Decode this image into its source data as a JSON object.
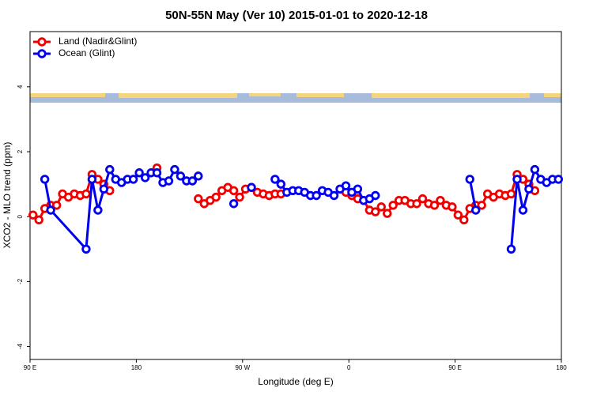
{
  "chart_data": {
    "type": "line",
    "title": "50N-55N May (Ver 10)   2015-01-01 to 2020-12-18",
    "x_label": "Longitude (deg E)",
    "y_label": "XCO2 - MLO trend (ppm)",
    "xlim": [
      90,
      540
    ],
    "xticks": [
      {
        "value": 90,
        "label": "90 E"
      },
      180,
      {
        "value": 270,
        "label": "90 W"
      },
      {
        "value": 360,
        "label": "0"
      },
      {
        "value": 450,
        "label": "90 E"
      },
      {
        "value": 540,
        "label": "180"
      }
    ],
    "ylim": [
      -4.4,
      5.7
    ],
    "yticks": [
      -4,
      -2,
      0,
      2,
      4
    ],
    "legend": "top-left",
    "series": [
      {
        "name": "Land (Nadir&Glint)",
        "color": "#ee0000",
        "x": [
          92.5,
          97.5,
          102.5,
          107.5,
          112.5,
          117.5,
          122.5,
          127.5,
          132.5,
          137.5,
          142.5,
          147.5,
          152.5,
          157.5,
          null,
          197.5,
          null,
          232.5,
          237.5,
          242.5,
          247.5,
          252.5,
          257.5,
          262.5,
          267.5,
          272.5,
          277.5,
          282.5,
          287.5,
          292.5,
          297.5,
          302.5,
          null,
          357.5,
          362.5,
          367.5,
          372.5,
          377.5,
          382.5,
          387.5,
          392.5,
          397.5,
          402.5,
          407.5,
          412.5,
          417.5,
          422.5,
          427.5,
          432.5,
          437.5,
          442.5,
          447.5,
          452.5,
          457.5,
          462.5,
          467.5,
          472.5,
          477.5,
          482.5,
          487.5,
          492.5,
          497.5,
          502.5,
          507.5,
          512.5,
          517.5
        ],
        "values": [
          0.05,
          -0.1,
          0.25,
          0.35,
          0.35,
          0.7,
          0.6,
          0.7,
          0.65,
          0.7,
          1.3,
          1.15,
          1.0,
          0.8,
          null,
          1.5,
          null,
          0.55,
          0.4,
          0.5,
          0.6,
          0.8,
          0.9,
          0.8,
          0.6,
          0.85,
          0.9,
          0.75,
          0.7,
          0.65,
          0.7,
          0.7,
          null,
          0.75,
          0.65,
          0.55,
          0.5,
          0.2,
          0.15,
          0.3,
          0.1,
          0.35,
          0.5,
          0.5,
          0.4,
          0.4,
          0.55,
          0.4,
          0.35,
          0.5,
          0.35,
          0.3,
          0.05,
          -0.1,
          0.25,
          0.35,
          0.35,
          0.7,
          0.6,
          0.7,
          0.65,
          0.7,
          1.3,
          1.15,
          1.0,
          0.8
        ]
      },
      {
        "name": "Ocean (Glint)",
        "color": "#0000ee",
        "x": [
          102.5,
          107.5,
          137.5,
          142.5,
          147.5,
          152.5,
          157.5,
          162.5,
          167.5,
          172.5,
          177.5,
          182.5,
          187.5,
          192.5,
          197.5,
          202.5,
          207.5,
          212.5,
          217.5,
          222.5,
          227.5,
          232.5,
          null,
          262.5,
          null,
          277.5,
          null,
          297.5,
          302.5,
          307.5,
          312.5,
          317.5,
          322.5,
          327.5,
          332.5,
          337.5,
          342.5,
          347.5,
          352.5,
          357.5,
          362.5,
          367.5,
          372.5,
          377.5,
          382.5,
          null,
          462.5,
          467.5,
          null,
          497.5,
          502.5,
          507.5,
          512.5,
          517.5,
          522.5,
          527.5,
          532.5,
          537.5
        ],
        "values": [
          1.15,
          0.2,
          -1.0,
          1.15,
          0.2,
          0.85,
          1.45,
          1.15,
          1.05,
          1.15,
          1.15,
          1.35,
          1.2,
          1.35,
          1.35,
          1.05,
          1.1,
          1.45,
          1.25,
          1.1,
          1.1,
          1.25,
          null,
          0.4,
          null,
          0.9,
          null,
          1.15,
          1.0,
          0.75,
          0.8,
          0.8,
          0.75,
          0.65,
          0.65,
          0.8,
          0.75,
          0.65,
          0.85,
          0.95,
          0.75,
          0.85,
          0.5,
          0.55,
          0.65,
          null,
          1.15,
          0.2,
          null,
          -1.0,
          1.15,
          0.2,
          0.85,
          1.45,
          1.15,
          1.05,
          1.15,
          1.15
        ]
      }
    ]
  }
}
